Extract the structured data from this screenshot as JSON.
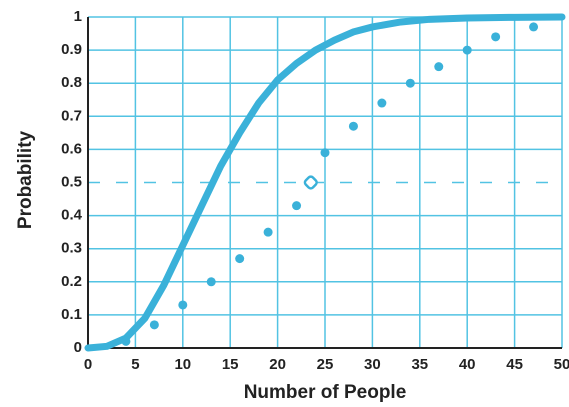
{
  "chart_data": {
    "type": "line",
    "xlabel": "Number of People",
    "ylabel": "Probability",
    "xlim": [
      0,
      50
    ],
    "ylim": [
      0,
      1
    ],
    "xticks": [
      0,
      5,
      10,
      15,
      20,
      25,
      30,
      35,
      40,
      45,
      50
    ],
    "yticks": [
      0,
      0.1,
      0.2,
      0.3,
      0.4,
      0.5,
      0.6,
      0.7,
      0.8,
      0.9,
      1
    ],
    "grid": true,
    "grid_color": "#52c3e3",
    "dashed_ytick": 0.5,
    "series": [
      {
        "style": "line",
        "color": "#3ab1d9",
        "x": [
          0,
          2,
          4,
          6,
          8,
          10,
          12,
          14,
          16,
          18,
          20,
          22,
          24,
          26,
          28,
          30,
          33,
          36,
          40,
          45,
          50
        ],
        "values": [
          0,
          0.005,
          0.03,
          0.09,
          0.19,
          0.31,
          0.43,
          0.55,
          0.65,
          0.74,
          0.81,
          0.86,
          0.9,
          0.93,
          0.955,
          0.97,
          0.985,
          0.993,
          0.997,
          0.999,
          1
        ]
      },
      {
        "style": "dots",
        "color": "#3ab1d9",
        "x": [
          4,
          7,
          10,
          13,
          16,
          19,
          22,
          25,
          28,
          31,
          34,
          37,
          40,
          43,
          47
        ],
        "values": [
          0.02,
          0.07,
          0.13,
          0.2,
          0.27,
          0.35,
          0.43,
          0.59,
          0.67,
          0.74,
          0.8,
          0.85,
          0.9,
          0.94,
          0.97
        ]
      },
      {
        "style": "open",
        "color": "#3ab1d9",
        "x": [
          23.5
        ],
        "values": [
          0.5
        ]
      }
    ]
  }
}
